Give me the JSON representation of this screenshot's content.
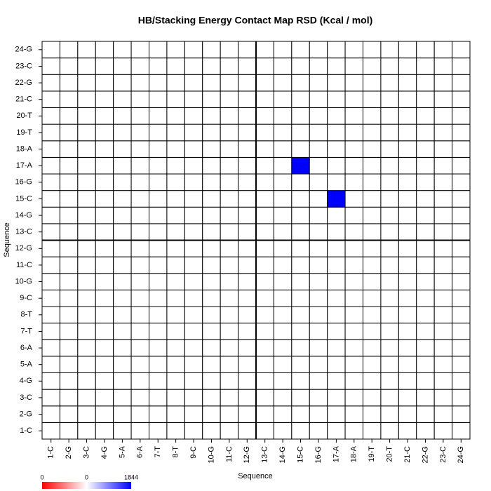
{
  "chart_data": {
    "type": "heatmap",
    "title": "HB/Stacking Energy Contact Map RSD (Kcal / mol)",
    "x_label": "Sequence",
    "y_label": "Sequence",
    "x_categories": [
      "1-C",
      "2-G",
      "3-C",
      "4-G",
      "5-A",
      "6-A",
      "7-T",
      "8-T",
      "9-C",
      "10-G",
      "11-C",
      "12-G",
      "13-C",
      "14-G",
      "15-C",
      "16-G",
      "17-A",
      "18-A",
      "19-T",
      "20-T",
      "21-C",
      "22-G",
      "23-C",
      "24-G"
    ],
    "y_categories": [
      "1-C",
      "2-G",
      "3-C",
      "4-G",
      "5-A",
      "6-A",
      "7-T",
      "8-T",
      "9-C",
      "10-G",
      "11-C",
      "12-G",
      "13-C",
      "14-G",
      "15-C",
      "16-G",
      "17-A",
      "18-A",
      "19-T",
      "20-T",
      "21-C",
      "22-G",
      "23-C",
      "24-G"
    ],
    "zlim": [
      0,
      1844
    ],
    "high_color": "#0000ff",
    "low_color": "#ffffff",
    "colorbar_labels": [
      "0",
      "0",
      "1844"
    ],
    "z": [
      [
        0,
        0,
        0,
        0,
        0,
        0,
        0,
        0,
        0,
        0,
        0,
        0,
        0,
        0,
        0,
        0,
        0,
        0,
        0,
        0,
        0,
        0,
        0,
        0
      ],
      [
        0,
        0,
        0,
        0,
        0,
        0,
        0,
        0,
        0,
        0,
        0,
        0,
        0,
        0,
        0,
        0,
        0,
        0,
        0,
        0,
        0,
        0,
        0,
        0
      ],
      [
        0,
        0,
        0,
        0,
        0,
        0,
        0,
        0,
        0,
        0,
        0,
        0,
        0,
        0,
        0,
        0,
        0,
        0,
        0,
        0,
        0,
        0,
        0,
        0
      ],
      [
        0,
        0,
        0,
        0,
        0,
        0,
        0,
        0,
        0,
        0,
        0,
        0,
        0,
        0,
        0,
        0,
        0,
        0,
        0,
        0,
        0,
        0,
        0,
        0
      ],
      [
        0,
        0,
        0,
        0,
        0,
        0,
        0,
        0,
        0,
        0,
        0,
        0,
        0,
        0,
        0,
        0,
        0,
        0,
        0,
        0,
        0,
        0,
        0,
        0
      ],
      [
        0,
        0,
        0,
        0,
        0,
        0,
        0,
        0,
        0,
        0,
        0,
        0,
        0,
        0,
        0,
        0,
        0,
        0,
        0,
        0,
        0,
        0,
        0,
        0
      ],
      [
        0,
        0,
        0,
        0,
        0,
        0,
        0,
        0,
        0,
        0,
        0,
        0,
        0,
        0,
        0,
        0,
        0,
        0,
        0,
        0,
        0,
        0,
        0,
        0
      ],
      [
        0,
        0,
        0,
        0,
        0,
        0,
        0,
        0,
        0,
        0,
        0,
        0,
        0,
        0,
        0,
        0,
        0,
        0,
        0,
        0,
        0,
        0,
        0,
        0
      ],
      [
        0,
        0,
        0,
        0,
        0,
        0,
        0,
        0,
        0,
        0,
        0,
        0,
        0,
        0,
        0,
        0,
        0,
        0,
        0,
        0,
        0,
        0,
        0,
        0
      ],
      [
        0,
        0,
        0,
        0,
        0,
        0,
        0,
        0,
        0,
        0,
        0,
        0,
        0,
        0,
        0,
        0,
        0,
        0,
        0,
        0,
        0,
        0,
        0,
        0
      ],
      [
        0,
        0,
        0,
        0,
        0,
        0,
        0,
        0,
        0,
        0,
        0,
        0,
        0,
        0,
        0,
        0,
        0,
        0,
        0,
        0,
        0,
        0,
        0,
        0
      ],
      [
        0,
        0,
        0,
        0,
        0,
        0,
        0,
        0,
        0,
        0,
        0,
        0,
        0,
        0,
        0,
        0,
        0,
        0,
        0,
        0,
        0,
        0,
        0,
        0
      ],
      [
        0,
        0,
        0,
        0,
        0,
        0,
        0,
        0,
        0,
        0,
        0,
        0,
        0,
        0,
        0,
        0,
        0,
        0,
        0,
        0,
        0,
        0,
        0,
        0
      ],
      [
        0,
        0,
        0,
        0,
        0,
        0,
        0,
        0,
        0,
        0,
        0,
        0,
        0,
        0,
        0,
        0,
        0,
        0,
        0,
        0,
        0,
        0,
        0,
        0
      ],
      [
        0,
        0,
        0,
        0,
        0,
        0,
        0,
        0,
        0,
        0,
        0,
        0,
        0,
        0,
        0,
        0,
        1844,
        0,
        0,
        0,
        0,
        0,
        0,
        0
      ],
      [
        0,
        0,
        0,
        0,
        0,
        0,
        0,
        0,
        0,
        0,
        0,
        0,
        0,
        0,
        0,
        0,
        0,
        0,
        0,
        0,
        0,
        0,
        0,
        0
      ],
      [
        0,
        0,
        0,
        0,
        0,
        0,
        0,
        0,
        0,
        0,
        0,
        0,
        0,
        0,
        1844,
        0,
        0,
        0,
        0,
        0,
        0,
        0,
        0,
        0
      ],
      [
        0,
        0,
        0,
        0,
        0,
        0,
        0,
        0,
        0,
        0,
        0,
        0,
        0,
        0,
        0,
        0,
        0,
        0,
        0,
        0,
        0,
        0,
        0,
        0
      ],
      [
        0,
        0,
        0,
        0,
        0,
        0,
        0,
        0,
        0,
        0,
        0,
        0,
        0,
        0,
        0,
        0,
        0,
        0,
        0,
        0,
        0,
        0,
        0,
        0
      ],
      [
        0,
        0,
        0,
        0,
        0,
        0,
        0,
        0,
        0,
        0,
        0,
        0,
        0,
        0,
        0,
        0,
        0,
        0,
        0,
        0,
        0,
        0,
        0,
        0
      ],
      [
        0,
        0,
        0,
        0,
        0,
        0,
        0,
        0,
        0,
        0,
        0,
        0,
        0,
        0,
        0,
        0,
        0,
        0,
        0,
        0,
        0,
        0,
        0,
        0
      ],
      [
        0,
        0,
        0,
        0,
        0,
        0,
        0,
        0,
        0,
        0,
        0,
        0,
        0,
        0,
        0,
        0,
        0,
        0,
        0,
        0,
        0,
        0,
        0,
        0
      ],
      [
        0,
        0,
        0,
        0,
        0,
        0,
        0,
        0,
        0,
        0,
        0,
        0,
        0,
        0,
        0,
        0,
        0,
        0,
        0,
        0,
        0,
        0,
        0,
        0
      ],
      [
        0,
        0,
        0,
        0,
        0,
        0,
        0,
        0,
        0,
        0,
        0,
        0,
        0,
        0,
        0,
        0,
        0,
        0,
        0,
        0,
        0,
        0,
        0,
        0
      ]
    ]
  }
}
